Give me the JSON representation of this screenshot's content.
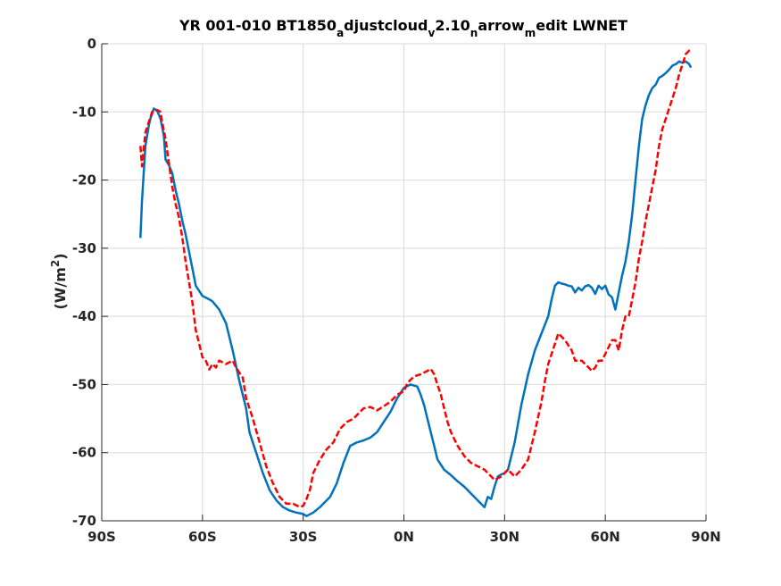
{
  "chart_data": {
    "type": "line",
    "title_parts": [
      {
        "text": "YR 001-010 BT1850",
        "sub": false
      },
      {
        "text": "a",
        "sub": true
      },
      {
        "text": "djustcloud",
        "sub": false
      },
      {
        "text": "v",
        "sub": true
      },
      {
        "text": "2.10",
        "sub": false
      },
      {
        "text": "n",
        "sub": true
      },
      {
        "text": "arrow",
        "sub": false
      },
      {
        "text": "m",
        "sub": true
      },
      {
        "text": "edit LWNET",
        "sub": false
      }
    ],
    "ylabel_parts": [
      {
        "text": "(W/m",
        "sup": false
      },
      {
        "text": "2",
        "sup": true
      },
      {
        "text": ")",
        "sup": false
      }
    ],
    "xlim": [
      -90,
      90
    ],
    "ylim": [
      -70,
      0
    ],
    "grid": true,
    "xticks": [
      -90,
      -60,
      -30,
      0,
      30,
      60,
      90
    ],
    "xtick_labels": [
      "90S",
      "60S",
      "30S",
      "0N",
      "30N",
      "60N",
      "90N"
    ],
    "yticks": [
      0,
      -10,
      -20,
      -30,
      -40,
      -50,
      -60,
      -70
    ],
    "ytick_labels": [
      "0",
      "-10",
      "-20",
      "-30",
      "-40",
      "-50",
      "-60",
      "-70"
    ],
    "series": [
      {
        "color": "#0072BD",
        "style": "solid",
        "x": [
          -78.5,
          -78,
          -77,
          -76,
          -75.5,
          -74.5,
          -73.5,
          -72.5,
          -71.5,
          -71,
          -70,
          -69,
          -68,
          -67,
          -66,
          -65,
          -64,
          -63,
          -62,
          -60,
          -58,
          -57,
          -55,
          -53,
          -51,
          -49,
          -47,
          -46,
          -44,
          -42,
          -40,
          -38,
          -36,
          -34,
          -32,
          -30,
          -29,
          -27,
          -25,
          -24,
          -22,
          -20,
          -18,
          -16,
          -14,
          -12,
          -10,
          -8,
          -6,
          -4,
          -2,
          0,
          2,
          4,
          5,
          6,
          7,
          8,
          9,
          10,
          12,
          14,
          16,
          18,
          20,
          22,
          24,
          25,
          26,
          27,
          28,
          29,
          30,
          31,
          33,
          35,
          37,
          39,
          41,
          43,
          44,
          45,
          46,
          47,
          48,
          49,
          50,
          51,
          52,
          53,
          54,
          55,
          56,
          57,
          58,
          59,
          60,
          61,
          62,
          63,
          64,
          65,
          66,
          67,
          68,
          69,
          70,
          71,
          72,
          73,
          74,
          75,
          76,
          77,
          78,
          79,
          80,
          81,
          82,
          83,
          84,
          85,
          85.5
        ],
        "y": [
          -28.5,
          -23,
          -15,
          -12,
          -11,
          -9.5,
          -9.8,
          -11,
          -13.5,
          -17,
          -17.8,
          -19,
          -21.5,
          -23.5,
          -26,
          -28,
          -30.5,
          -33,
          -35.5,
          -37,
          -37.5,
          -37.8,
          -39,
          -41,
          -45,
          -49.5,
          -53.5,
          -57,
          -60,
          -63,
          -65.5,
          -67,
          -68,
          -68.5,
          -68.8,
          -69,
          -69.3,
          -68.8,
          -68,
          -67.5,
          -66.5,
          -64.5,
          -61.5,
          -59,
          -58.5,
          -58.2,
          -57.8,
          -57,
          -55.5,
          -54,
          -52,
          -50.5,
          -50,
          -50.3,
          -51.5,
          -53,
          -55,
          -57,
          -59,
          -61,
          -62.5,
          -63.3,
          -64.2,
          -65,
          -66,
          -67,
          -68,
          -66.5,
          -66.8,
          -65,
          -63.5,
          -63.2,
          -63,
          -62.5,
          -58.5,
          -53,
          -48.5,
          -45,
          -42.5,
          -40,
          -37.5,
          -35.5,
          -35,
          -35.2,
          -35.3,
          -35.5,
          -35.6,
          -36.5,
          -35.8,
          -36.2,
          -35.6,
          -35.4,
          -35.8,
          -36.7,
          -35.5,
          -36,
          -35.5,
          -36.8,
          -37.2,
          -39,
          -36.5,
          -34,
          -32,
          -29,
          -25,
          -20,
          -15,
          -11,
          -9,
          -7.5,
          -6.5,
          -6,
          -5,
          -4.7,
          -4.3,
          -3.8,
          -3.2,
          -3,
          -2.6,
          -2.8,
          -2.6,
          -3,
          -3.5
        ]
      },
      {
        "color": "#FF0000",
        "style": "dashed",
        "x": [
          -78.5,
          -78,
          -77,
          -76,
          -75,
          -74,
          -73.5,
          -72.5,
          -72,
          -71,
          -70,
          -69,
          -68,
          -67,
          -66,
          -65,
          -64,
          -63,
          -62,
          -61,
          -60,
          -59,
          -58,
          -57,
          -56,
          -55,
          -53,
          -51,
          -50,
          -48,
          -47,
          -45,
          -43,
          -41,
          -39,
          -37,
          -35,
          -33,
          -31,
          -30,
          -29,
          -28,
          -27,
          -25,
          -23,
          -21,
          -19,
          -17,
          -15,
          -14,
          -12,
          -10,
          -8,
          -6,
          -4,
          -2,
          0,
          1,
          3,
          5,
          7,
          8,
          9,
          10,
          11,
          12,
          13,
          14,
          16,
          18,
          20,
          22,
          24,
          26,
          27,
          29,
          31,
          33,
          35,
          37,
          39,
          41,
          42,
          43,
          44,
          45,
          46,
          48,
          50,
          51,
          53,
          55,
          56,
          57,
          58,
          59,
          60,
          61,
          62,
          63,
          64,
          65,
          66,
          67,
          68,
          69,
          70,
          71,
          72,
          73,
          74,
          75,
          76,
          77,
          78,
          79,
          80,
          81,
          82,
          83,
          84,
          85,
          85.5
        ],
        "y": [
          -15,
          -18,
          -13,
          -11.5,
          -10,
          -10,
          -9.7,
          -10,
          -11.5,
          -14,
          -17.5,
          -21,
          -23.5,
          -25.5,
          -28.5,
          -32,
          -35,
          -38,
          -42,
          -44,
          -46,
          -46.5,
          -47.8,
          -47,
          -47.5,
          -46.5,
          -47,
          -46.5,
          -47.5,
          -49,
          -52,
          -55,
          -58.5,
          -62,
          -64.5,
          -66.5,
          -67.5,
          -67.5,
          -68,
          -67.8,
          -66.8,
          -65.5,
          -63,
          -61,
          -59.5,
          -58.5,
          -56.5,
          -55.5,
          -55,
          -54.5,
          -53.5,
          -53.3,
          -53.8,
          -53.2,
          -52.5,
          -51.5,
          -51,
          -49.8,
          -48.8,
          -48.5,
          -48,
          -47.7,
          -48.5,
          -50,
          -51.5,
          -53.5,
          -55.5,
          -57,
          -59,
          -60.5,
          -61.5,
          -62,
          -62.5,
          -63.5,
          -64,
          -63.5,
          -62.5,
          -63.5,
          -62.5,
          -61,
          -57,
          -52.5,
          -49.5,
          -47,
          -45.5,
          -44,
          -42.5,
          -43.5,
          -45,
          -46.5,
          -46.5,
          -47.5,
          -48,
          -47.5,
          -46.5,
          -46.5,
          -45.5,
          -44.5,
          -43.5,
          -43.5,
          -45,
          -42,
          -40,
          -40,
          -37.5,
          -35,
          -31.5,
          -29,
          -26,
          -23.5,
          -21,
          -18.5,
          -15,
          -12.5,
          -11,
          -9.5,
          -8,
          -6.5,
          -4.5,
          -3,
          -1.5,
          -1,
          -1
        ]
      }
    ]
  }
}
